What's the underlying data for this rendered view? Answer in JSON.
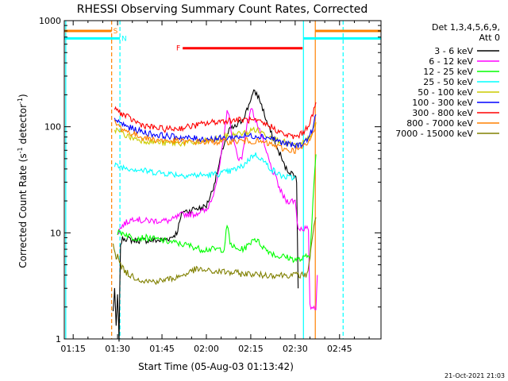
{
  "chart_data": {
    "type": "line",
    "title": "RHESSI Observing Summary Count Rates, Corrected",
    "xlabel": "Start Time (05-Aug-03 01:13:42)",
    "ylabel": "Corrected Count Rate (s",
    "ylabel_sup": "-1",
    "ylabel_mid": " detector",
    "ylabel_end": ")",
    "footer": "21-Oct-2021 21:03",
    "x_unit": "minutes after 01:00 UT",
    "xlim": [
      72,
      179
    ],
    "ylim": [
      1,
      1000
    ],
    "yscale": "log",
    "x_ticks": [
      {
        "value": 75,
        "label": "01:15"
      },
      {
        "value": 90,
        "label": "01:30"
      },
      {
        "value": 105,
        "label": "01:45"
      },
      {
        "value": 120,
        "label": "02:00"
      },
      {
        "value": 135,
        "label": "02:15"
      },
      {
        "value": 150,
        "label": "02:30"
      },
      {
        "value": 165,
        "label": "02:45"
      }
    ],
    "y_ticks": [
      {
        "value": 1,
        "label": "1"
      },
      {
        "value": 10,
        "label": "10"
      },
      {
        "value": 100,
        "label": "100"
      },
      {
        "value": 1000,
        "label": "1000"
      }
    ],
    "legend": {
      "header": [
        "Det 1,3,4,5,6,9,",
        "Att 0"
      ],
      "placement": "right"
    },
    "series": [
      {
        "name": "3 - 6 keV",
        "color": "#000000",
        "x": [
          88.5,
          89,
          89.5,
          90,
          90.5,
          91,
          92,
          95,
          100,
          105,
          108,
          110,
          112,
          114,
          116,
          118,
          120,
          122,
          124,
          126,
          128,
          130,
          132,
          134,
          135,
          136,
          137,
          138,
          139,
          140,
          141,
          142,
          143,
          144,
          145,
          146,
          147,
          148,
          149,
          150,
          150.5,
          151
        ],
        "y": [
          1.8,
          3,
          1.3,
          2.5,
          1.0,
          8,
          9,
          8.5,
          8.5,
          8.5,
          9,
          10,
          16,
          16,
          17,
          17,
          18,
          25,
          40,
          70,
          95,
          100,
          115,
          150,
          185,
          210,
          205,
          180,
          150,
          120,
          100,
          85,
          75,
          60,
          55,
          45,
          40,
          38,
          36,
          35,
          30,
          3
        ]
      },
      {
        "name": "6 - 12 keV",
        "color": "#ff00ff",
        "x": [
          90,
          91,
          92,
          94,
          96,
          98,
          100,
          102,
          104,
          106,
          108,
          110,
          112,
          114,
          116,
          118,
          120,
          122,
          124,
          126,
          127,
          128,
          129,
          130,
          131,
          132,
          133,
          134,
          135,
          136,
          137,
          138,
          139,
          140,
          141,
          142,
          143,
          144,
          145,
          146,
          147,
          148,
          149,
          150,
          151,
          152,
          153,
          154,
          154.5,
          155,
          156,
          157,
          157.5
        ],
        "y": [
          10,
          11,
          12,
          13,
          14,
          13,
          13,
          13,
          13,
          13,
          13,
          14,
          15,
          15,
          15,
          16,
          16,
          22,
          35,
          80,
          150,
          110,
          75,
          60,
          50,
          50,
          80,
          110,
          150,
          130,
          110,
          90,
          75,
          60,
          50,
          40,
          35,
          30,
          25,
          22,
          20,
          20,
          20,
          20,
          11,
          11,
          11,
          11,
          10,
          2,
          2,
          2,
          4
        ]
      },
      {
        "name": "12 - 25 keV",
        "color": "#00ff00",
        "x": [
          90,
          92,
          95,
          100,
          105,
          110,
          115,
          118,
          120,
          122,
          124,
          126,
          127,
          128,
          130,
          132,
          134,
          136,
          138,
          140,
          142,
          144,
          146,
          148,
          150,
          152,
          154,
          155,
          156,
          157
        ],
        "y": [
          10,
          10,
          9,
          9,
          8.5,
          8,
          7.5,
          7,
          7,
          7,
          7,
          7,
          12,
          8,
          7,
          7,
          7.5,
          9,
          8,
          7,
          6.5,
          6,
          6,
          5.8,
          5.6,
          5.6,
          6,
          6,
          20,
          55
        ]
      },
      {
        "name": "25 - 50 keV",
        "color": "#00ffff",
        "x": [
          89,
          91,
          93,
          96,
          100,
          104,
          108,
          112,
          116,
          120,
          124,
          128,
          132,
          134,
          136,
          138,
          140,
          142,
          144,
          146,
          148,
          150
        ],
        "y": [
          43,
          42,
          41,
          40,
          38,
          37,
          36,
          35,
          35,
          35,
          36,
          38,
          42,
          48,
          55,
          52,
          45,
          40,
          36,
          34,
          33,
          33
        ]
      },
      {
        "name": "50 - 100 keV",
        "color": "#cccc00",
        "x": [
          89,
          91,
          94,
          98,
          102,
          106,
          110,
          114,
          118,
          122,
          126,
          130,
          134,
          136,
          138,
          140,
          142,
          144,
          146,
          148,
          150,
          152,
          154,
          156,
          157
        ],
        "y": [
          95,
          88,
          80,
          75,
          72,
          70,
          70,
          70,
          72,
          74,
          80,
          85,
          88,
          95,
          90,
          85,
          80,
          75,
          72,
          68,
          66,
          68,
          75,
          90,
          110
        ]
      },
      {
        "name": "100 - 300 keV",
        "color": "#0000ff",
        "x": [
          89,
          91,
          94,
          98,
          102,
          106,
          110,
          114,
          118,
          122,
          126,
          130,
          134,
          138,
          142,
          144,
          146,
          148,
          150,
          152,
          154,
          156,
          157
        ],
        "y": [
          118,
          108,
          98,
          90,
          85,
          82,
          80,
          78,
          77,
          77,
          78,
          80,
          82,
          82,
          78,
          74,
          70,
          68,
          66,
          68,
          75,
          95,
          130
        ]
      },
      {
        "name": "300 - 800 keV",
        "color": "#ff0000",
        "x": [
          89,
          91,
          94,
          98,
          102,
          106,
          110,
          114,
          118,
          122,
          126,
          130,
          134,
          138,
          142,
          144,
          146,
          148,
          150,
          152,
          154,
          156,
          157
        ],
        "y": [
          150,
          135,
          120,
          105,
          98,
          95,
          96,
          100,
          105,
          110,
          114,
          116,
          116,
          110,
          100,
          92,
          85,
          82,
          80,
          85,
          98,
          130,
          170
        ]
      },
      {
        "name": "800 - 7000 keV",
        "color": "#ff8000",
        "x": [
          89,
          91,
          94,
          98,
          102,
          106,
          110,
          114,
          118,
          122,
          126,
          130,
          134,
          138,
          142,
          144,
          146,
          148,
          150,
          152,
          154,
          156,
          157
        ],
        "y": [
          110,
          98,
          88,
          80,
          76,
          74,
          73,
          72,
          72,
          72,
          72,
          73,
          74,
          72,
          68,
          65,
          62,
          60,
          60,
          62,
          68,
          85,
          110
        ]
      },
      {
        "name": "7000 - 15000 keV",
        "color": "#808000",
        "x": [
          88.5,
          89.5,
          90,
          91,
          92,
          94,
          96,
          98,
          100,
          102,
          104,
          106,
          108,
          110,
          112,
          114,
          116,
          118,
          120,
          122,
          124,
          126,
          128,
          130,
          132,
          134,
          136,
          138,
          140,
          142,
          144,
          146,
          148,
          150,
          152,
          154,
          155,
          156,
          157
        ],
        "y": [
          8,
          6,
          6,
          5,
          4.5,
          4,
          3.8,
          3.6,
          3.5,
          3.5,
          3.5,
          3.6,
          3.7,
          3.8,
          4,
          4.2,
          4.5,
          4.5,
          4.4,
          4.3,
          4.3,
          4.3,
          4.2,
          4.2,
          4.1,
          4.1,
          4.1,
          4,
          4,
          4,
          4,
          4,
          4,
          4,
          4,
          4,
          6,
          10,
          14
        ]
      }
    ],
    "vertical_lines": [
      {
        "x": 72.5,
        "color": "#00ffff",
        "style": "solid"
      },
      {
        "x": 88,
        "color": "#ff8000",
        "style": "dashed"
      },
      {
        "x": 90.8,
        "color": "#00ffff",
        "style": "dashed"
      },
      {
        "x": 152.8,
        "color": "#00ffff",
        "style": "solid"
      },
      {
        "x": 156.8,
        "color": "#ff8000",
        "style": "solid"
      },
      {
        "x": 166.2,
        "color": "#00ffff",
        "style": "dashed"
      }
    ],
    "intervals": [
      {
        "label": "S",
        "x_start": 72,
        "x_end": 88,
        "y": 800,
        "color": "#ff8000",
        "label_x": 89.3
      },
      {
        "label": "N",
        "x_start": 72,
        "x_end": 90.8,
        "y": 680,
        "color": "#00ffff",
        "label_x": 92.2
      },
      {
        "label": "F",
        "x_start": 112,
        "x_end": 152.5,
        "y": 550,
        "color": "#ff0000",
        "label_x": 110.5
      },
      {
        "label": "",
        "x_start": 152.8,
        "x_end": 179,
        "y": 680,
        "color": "#00ffff",
        "label_x": 0
      },
      {
        "label": "",
        "x_start": 156.8,
        "x_end": 179,
        "y": 800,
        "color": "#ff8000",
        "label_x": 0
      }
    ]
  }
}
